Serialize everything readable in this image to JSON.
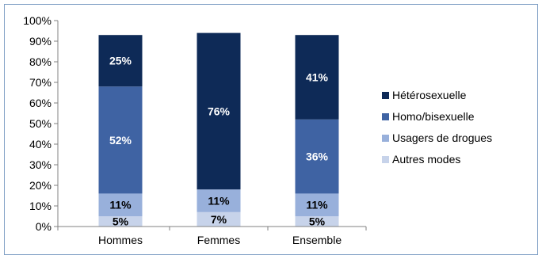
{
  "chart_data": {
    "type": "bar",
    "stacked": true,
    "categories": [
      "Hommes",
      "Femmes",
      "Ensemble"
    ],
    "ylim": [
      0,
      100
    ],
    "yticks": [
      0,
      10,
      20,
      30,
      40,
      50,
      60,
      70,
      80,
      90,
      100
    ],
    "ytick_suffix": "%",
    "grid": false,
    "legend_position": "right",
    "series": [
      {
        "name": "Autres modes",
        "color": "#c7d3ea",
        "values": [
          5,
          7,
          5
        ],
        "labels": [
          "5%",
          "7%",
          "5%"
        ]
      },
      {
        "name": "Usagers de drogues",
        "color": "#98b0db",
        "values": [
          11,
          11,
          11
        ],
        "labels": [
          "11%",
          "11%",
          "11%"
        ]
      },
      {
        "name": "Homo/bisexuelle",
        "color": "#3f63a3",
        "values": [
          52,
          0,
          36
        ],
        "labels": [
          "52%",
          "",
          "36%"
        ]
      },
      {
        "name": "Hétérosexuelle",
        "color": "#0e2a57",
        "values": [
          25,
          76,
          41
        ],
        "labels": [
          "25%",
          "76%",
          "41%"
        ]
      }
    ],
    "legend_order": [
      "Hétérosexuelle",
      "Homo/bisexuelle",
      "Usagers de drogues",
      "Autres modes"
    ]
  }
}
